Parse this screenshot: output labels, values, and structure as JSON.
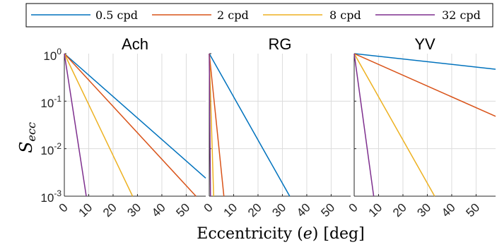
{
  "chart_data": {
    "type": "line",
    "ylabel": "S",
    "ylabel_sub": "ecc",
    "xlabel": "Eccentricity (e) [deg]",
    "xlabel_parts": [
      "Eccentricity (",
      "e",
      ") [deg]"
    ],
    "yscale": "log",
    "ylim": [
      0.001,
      1
    ],
    "xlim": [
      0,
      58
    ],
    "y_ticks": [
      {
        "base": "10",
        "exp": "0"
      },
      {
        "base": "10",
        "exp": "-1"
      },
      {
        "base": "10",
        "exp": "-2"
      },
      {
        "base": "10",
        "exp": "-3"
      }
    ],
    "x_ticks": [
      "0",
      "10",
      "20",
      "30",
      "40",
      "50"
    ],
    "grid": true,
    "legend_position": "top",
    "legend": [
      "0.5 cpd",
      "2 cpd",
      "8 cpd",
      "32 cpd"
    ],
    "colors": [
      "#0072BD",
      "#D95319",
      "#EDB120",
      "#7E2F8E"
    ],
    "panels": [
      {
        "title": "Ach",
        "series": [
          {
            "name": "0.5 cpd",
            "x": [
              0,
              58
            ],
            "y": [
              1,
              0.0024
            ]
          },
          {
            "name": "2 cpd",
            "x": [
              0,
              54
            ],
            "y": [
              1,
              0.001
            ]
          },
          {
            "name": "8 cpd",
            "x": [
              0,
              28
            ],
            "y": [
              1,
              0.001
            ]
          },
          {
            "name": "32 cpd",
            "x": [
              0,
              9
            ],
            "y": [
              1,
              0.001
            ]
          }
        ]
      },
      {
        "title": "RG",
        "series": [
          {
            "name": "0.5 cpd",
            "x": [
              0,
              33
            ],
            "y": [
              1,
              0.001
            ]
          },
          {
            "name": "2 cpd",
            "x": [
              0,
              6
            ],
            "y": [
              1,
              0.001
            ]
          },
          {
            "name": "8 cpd",
            "x": [
              0,
              1.8
            ],
            "y": [
              1,
              0.001
            ]
          },
          {
            "name": "32 cpd",
            "x": [
              0,
              0.5
            ],
            "y": [
              1,
              0.001
            ]
          }
        ]
      },
      {
        "title": "YV",
        "series": [
          {
            "name": "0.5 cpd",
            "x": [
              0,
              58
            ],
            "y": [
              1,
              0.47
            ]
          },
          {
            "name": "2 cpd",
            "x": [
              0,
              58
            ],
            "y": [
              1,
              0.048
            ]
          },
          {
            "name": "8 cpd",
            "x": [
              0,
              33
            ],
            "y": [
              1,
              0.001
            ]
          },
          {
            "name": "32 cpd",
            "x": [
              0,
              8
            ],
            "y": [
              1,
              0.001
            ]
          }
        ]
      }
    ]
  }
}
